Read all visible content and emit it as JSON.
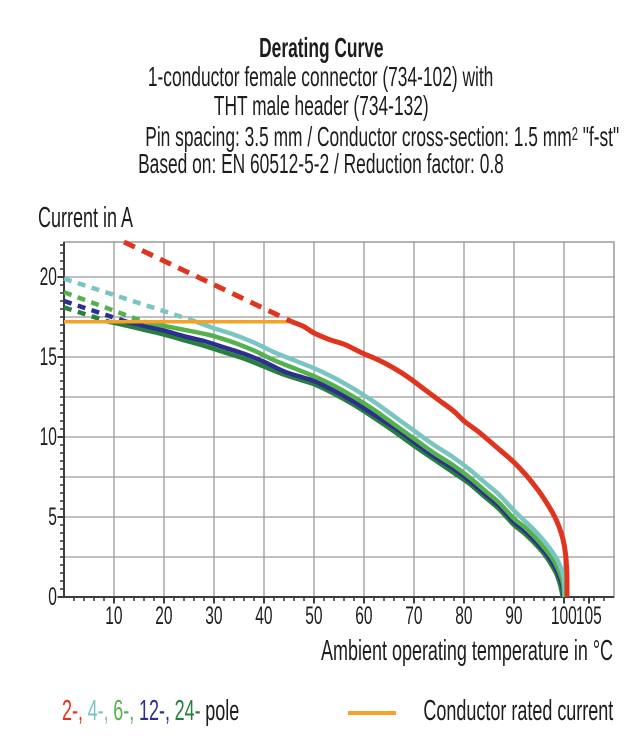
{
  "header": {
    "title": "Derating Curve",
    "line2": "1-conductor female connector (734-102) with",
    "line3": "THT male header (734-132)",
    "line4_pre": "Pin spacing: 3.5 mm / Conductor cross-section: 1.5 mm",
    "line4_sup": "2",
    "line4_post": " \"f-st\"",
    "line5": "Based on: EN 60512-5-2 / Reduction factor: 0.8"
  },
  "chart_data": {
    "type": "line",
    "title": "Derating Curve",
    "ylabel": "Current in A",
    "xlabel": "Ambient operating temperature in °C",
    "xlim": [
      0,
      110
    ],
    "ylim": [
      0,
      22.2
    ],
    "x_major_ticks": [
      10,
      20,
      30,
      40,
      50,
      60,
      70,
      80,
      90,
      100,
      105
    ],
    "y_major_ticks": [
      0,
      5,
      10,
      15,
      20
    ],
    "grid": {
      "on": true,
      "x_step": 10,
      "y_step": 2.5
    },
    "colors": {
      "grid": "#9a9a9a",
      "axis": "#3d3d3d",
      "text": "#1d1d1b",
      "rated": "#f5a226"
    },
    "rated_current": {
      "label": "Conductor rated current",
      "value": 17.2,
      "x_start": 0,
      "x_end": 45.6,
      "color": "#f5a226"
    },
    "series": [
      {
        "name": "2-pole",
        "color": "#e1341e",
        "width": 5,
        "dash": "12 8",
        "zorder": 3,
        "dashed": [
          [
            12,
            22.19
          ],
          [
            45.6,
            17.2
          ]
        ],
        "solid": [
          [
            45.6,
            17.2
          ],
          [
            48,
            16.9
          ],
          [
            50,
            16.5
          ],
          [
            53,
            16.1
          ],
          [
            56,
            15.8
          ],
          [
            58,
            15.5
          ],
          [
            60,
            15.2
          ],
          [
            63,
            14.8
          ],
          [
            66,
            14.3
          ],
          [
            69,
            13.7
          ],
          [
            72,
            13.0
          ],
          [
            75,
            12.3
          ],
          [
            78,
            11.6
          ],
          [
            80,
            11.0
          ],
          [
            83,
            10.3
          ],
          [
            86,
            9.5
          ],
          [
            89,
            8.7
          ],
          [
            91,
            8.1
          ],
          [
            93,
            7.4
          ],
          [
            95,
            6.6
          ],
          [
            96.5,
            5.9
          ],
          [
            98,
            5.1
          ],
          [
            99,
            4.4
          ],
          [
            99.8,
            3.6
          ],
          [
            100.3,
            2.7
          ],
          [
            100.55,
            1.6
          ],
          [
            100.6,
            0
          ]
        ]
      },
      {
        "name": "4-pole",
        "color": "#7ac5c1",
        "width": 4.5,
        "dash": "8 6.5",
        "zorder": 1,
        "dashed": [
          [
            0,
            19.9
          ],
          [
            26.5,
            17.2
          ]
        ],
        "solid": [
          [
            26.5,
            17.2
          ],
          [
            30,
            16.8
          ],
          [
            34,
            16.4
          ],
          [
            38,
            15.9
          ],
          [
            42,
            15.3
          ],
          [
            46,
            14.8
          ],
          [
            50,
            14.3
          ],
          [
            54,
            13.7
          ],
          [
            58,
            13.0
          ],
          [
            62,
            12.2
          ],
          [
            66,
            11.3
          ],
          [
            70,
            10.4
          ],
          [
            74,
            9.5
          ],
          [
            78,
            8.7
          ],
          [
            81,
            8.0
          ],
          [
            84,
            7.2
          ],
          [
            87,
            6.4
          ],
          [
            90,
            5.4
          ],
          [
            92,
            4.8
          ],
          [
            94,
            4.2
          ],
          [
            96,
            3.5
          ],
          [
            97.5,
            2.9
          ],
          [
            98.7,
            2.3
          ],
          [
            99.5,
            1.7
          ],
          [
            100.0,
            1.1
          ],
          [
            100.2,
            0
          ]
        ]
      },
      {
        "name": "6-pole",
        "color": "#55b14d",
        "width": 4.5,
        "dash": "8 6.5",
        "zorder": 1,
        "dashed": [
          [
            0,
            19.05
          ],
          [
            16,
            17.2
          ]
        ],
        "solid": [
          [
            16,
            17.2
          ],
          [
            20,
            16.95
          ],
          [
            24,
            16.7
          ],
          [
            28,
            16.45
          ],
          [
            30,
            16.3
          ],
          [
            34,
            15.9
          ],
          [
            38,
            15.4
          ],
          [
            42,
            14.8
          ],
          [
            46,
            14.3
          ],
          [
            50,
            13.8
          ],
          [
            54,
            13.2
          ],
          [
            58,
            12.5
          ],
          [
            62,
            11.7
          ],
          [
            66,
            10.8
          ],
          [
            70,
            9.9
          ],
          [
            74,
            9.0
          ],
          [
            78,
            8.2
          ],
          [
            81,
            7.5
          ],
          [
            84,
            6.7
          ],
          [
            87,
            5.9
          ],
          [
            90,
            4.9
          ],
          [
            92,
            4.4
          ],
          [
            94,
            3.8
          ],
          [
            96,
            3.1
          ],
          [
            97.5,
            2.5
          ],
          [
            98.6,
            1.9
          ],
          [
            99.4,
            1.3
          ],
          [
            99.9,
            0.7
          ],
          [
            100.05,
            0
          ]
        ]
      },
      {
        "name": "12-pole",
        "color": "#2e2e8f",
        "width": 4.5,
        "dash": "8 6.5",
        "zorder": 1,
        "dashed": [
          [
            0,
            18.5
          ],
          [
            12.5,
            17.2
          ]
        ],
        "solid": [
          [
            12.5,
            17.2
          ],
          [
            16,
            16.95
          ],
          [
            20,
            16.65
          ],
          [
            24,
            16.3
          ],
          [
            28,
            16.0
          ],
          [
            32,
            15.6
          ],
          [
            36,
            15.2
          ],
          [
            40,
            14.7
          ],
          [
            44,
            14.1
          ],
          [
            48,
            13.7
          ],
          [
            50,
            13.5
          ],
          [
            54,
            12.9
          ],
          [
            58,
            12.2
          ],
          [
            62,
            11.4
          ],
          [
            66,
            10.6
          ],
          [
            70,
            9.7
          ],
          [
            74,
            8.8
          ],
          [
            78,
            8.0
          ],
          [
            81,
            7.3
          ],
          [
            84,
            6.5
          ],
          [
            87,
            5.7
          ],
          [
            90,
            4.7
          ],
          [
            92,
            4.2
          ],
          [
            94,
            3.6
          ],
          [
            96,
            2.9
          ],
          [
            97.4,
            2.3
          ],
          [
            98.5,
            1.7
          ],
          [
            99.3,
            1.1
          ],
          [
            99.8,
            0.5
          ],
          [
            99.9,
            0
          ]
        ]
      },
      {
        "name": "24-pole",
        "color": "#27803e",
        "width": 4.5,
        "dash": "8 6.5",
        "zorder": 1,
        "dashed": [
          [
            0,
            18.1
          ],
          [
            9,
            17.2
          ]
        ],
        "solid": [
          [
            9,
            17.2
          ],
          [
            12,
            17.0
          ],
          [
            16,
            16.7
          ],
          [
            20,
            16.4
          ],
          [
            24,
            16.05
          ],
          [
            28,
            15.7
          ],
          [
            32,
            15.3
          ],
          [
            36,
            14.9
          ],
          [
            40,
            14.4
          ],
          [
            44,
            13.9
          ],
          [
            48,
            13.5
          ],
          [
            50,
            13.3
          ],
          [
            54,
            12.7
          ],
          [
            58,
            12.0
          ],
          [
            62,
            11.2
          ],
          [
            66,
            10.35
          ],
          [
            70,
            9.45
          ],
          [
            74,
            8.6
          ],
          [
            78,
            7.75
          ],
          [
            81,
            7.1
          ],
          [
            84,
            6.3
          ],
          [
            87,
            5.5
          ],
          [
            90,
            4.5
          ],
          [
            92,
            4.0
          ],
          [
            94,
            3.4
          ],
          [
            96,
            2.7
          ],
          [
            97.3,
            2.1
          ],
          [
            98.4,
            1.5
          ],
          [
            99.1,
            0.9
          ],
          [
            99.5,
            0.4
          ],
          [
            99.75,
            0
          ]
        ]
      }
    ]
  },
  "legend": {
    "pole_tokens": [
      {
        "label": "2-,",
        "color": "#e1341e"
      },
      {
        "label": "4-,",
        "color": "#7ac5c1"
      },
      {
        "label": "6-,",
        "color": "#55b14d"
      },
      {
        "label": "12-,",
        "color": "#2e2e8f"
      },
      {
        "label": "24-",
        "color": "#27803e"
      },
      {
        "label": "pole",
        "color": "#1d1d1b"
      }
    ],
    "rated_label": "Conductor rated current"
  }
}
